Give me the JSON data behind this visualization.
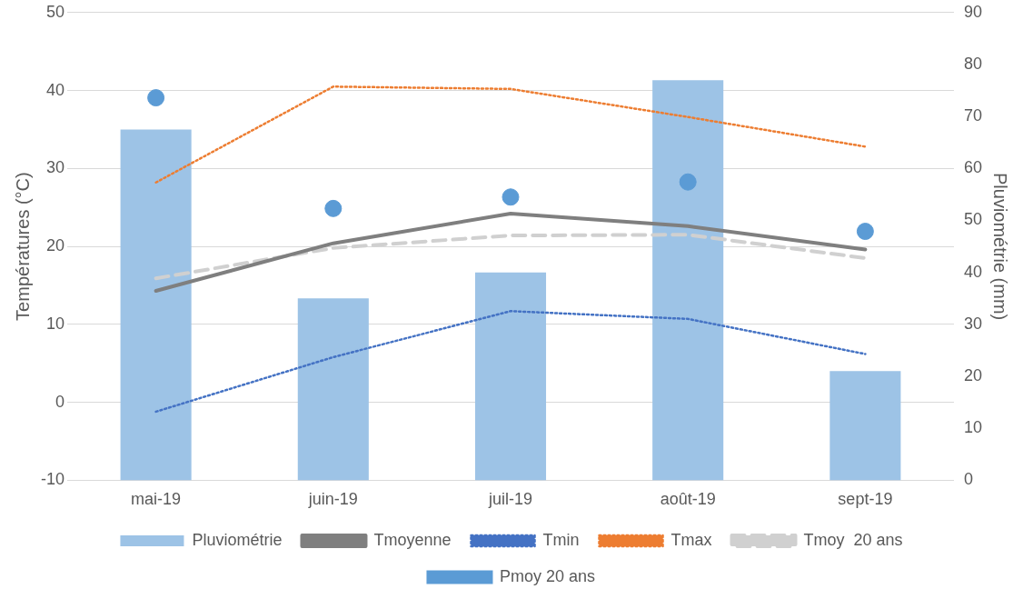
{
  "chart_data": {
    "type": "bar",
    "categories": [
      "mai-19",
      "juin-19",
      "juil-19",
      "août-19",
      "sept-19"
    ],
    "ylabel": "Températures (°C)",
    "y2label": "Pluviométrie (mm)",
    "ylim": [
      -10,
      50
    ],
    "yticks": [
      -10,
      0,
      10,
      20,
      30,
      40,
      50
    ],
    "y2lim": [
      0,
      90
    ],
    "y2ticks": [
      0,
      10,
      20,
      30,
      40,
      50,
      60,
      70,
      80,
      90
    ],
    "grid": "y",
    "legend": "bottom",
    "series": [
      {
        "name": "Pluviométrie",
        "axis": "y2",
        "color": "#9dc3e6",
        "values": [
          67.5,
          35,
          40,
          77,
          21
        ]
      },
      {
        "name": "Tmoyenne",
        "type": "line",
        "color": "#7f7f7f",
        "line_style": "solid",
        "marker": "none",
        "values": [
          14.3,
          20.4,
          24.2,
          22.6,
          19.6
        ]
      },
      {
        "name": "Tmin",
        "type": "line",
        "color": "#4472c4",
        "line_style": "dotted",
        "marker": "none",
        "values": [
          -1.2,
          5.8,
          11.7,
          10.7,
          6.2
        ]
      },
      {
        "name": "Tmax",
        "type": "line",
        "color": "#ed7d31",
        "line_style": "dotted",
        "marker": "none",
        "values": [
          28.2,
          40.5,
          40.2,
          36.6,
          32.8
        ]
      },
      {
        "name": "Tmoy  20 ans",
        "type": "line",
        "color": "#d0d0d0",
        "line_style": "dashed",
        "marker": "none",
        "values": [
          15.9,
          19.8,
          21.4,
          21.5,
          18.5
        ]
      },
      {
        "name": "Pmoy 20 ans",
        "type": "scatter",
        "axis": "y2",
        "color": "#5b9bd5",
        "marker": "circle",
        "values": [
          73.6,
          52.3,
          54.5,
          57.4,
          47.9
        ]
      }
    ]
  }
}
